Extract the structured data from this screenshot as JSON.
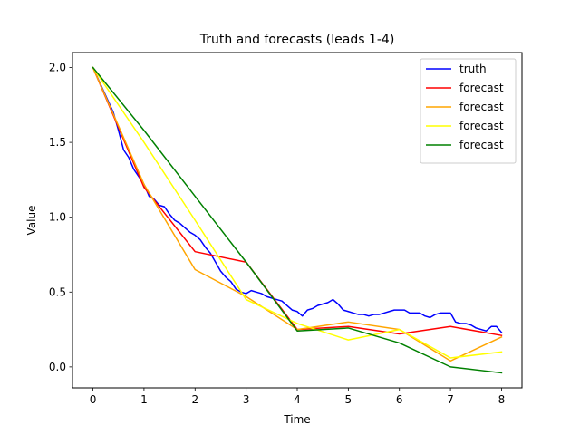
{
  "chart_data": {
    "type": "line",
    "title": "Truth and forecasts (leads 1-4)",
    "xlabel": "Time",
    "ylabel": "Value",
    "xlim": [
      -0.4,
      8.4
    ],
    "ylim": [
      -0.14,
      2.1
    ],
    "xticks": [
      0,
      1,
      2,
      3,
      4,
      5,
      6,
      7,
      8
    ],
    "xtick_labels": [
      "0",
      "1",
      "2",
      "3",
      "4",
      "5",
      "6",
      "7",
      "8"
    ],
    "yticks": [
      0.0,
      0.5,
      1.0,
      1.5,
      2.0
    ],
    "ytick_labels": [
      "0.0",
      "0.5",
      "1.0",
      "1.5",
      "2.0"
    ],
    "grid": false,
    "legend_position": "top-right",
    "series": [
      {
        "name": "truth",
        "color": "#0000ff",
        "x": [
          0,
          0.2,
          0.4,
          0.5,
          0.6,
          0.7,
          0.8,
          0.9,
          1.0,
          1.1,
          1.2,
          1.3,
          1.4,
          1.5,
          1.6,
          1.7,
          1.8,
          1.9,
          2.0,
          2.1,
          2.2,
          2.3,
          2.4,
          2.5,
          2.6,
          2.7,
          2.8,
          2.9,
          3.0,
          3.1,
          3.2,
          3.3,
          3.4,
          3.5,
          3.6,
          3.7,
          3.8,
          3.9,
          4.0,
          4.1,
          4.2,
          4.3,
          4.4,
          4.5,
          4.6,
          4.7,
          4.8,
          4.9,
          5.0,
          5.1,
          5.2,
          5.3,
          5.4,
          5.5,
          5.6,
          5.7,
          5.8,
          5.9,
          6.0,
          6.1,
          6.2,
          6.3,
          6.4,
          6.5,
          6.6,
          6.7,
          6.8,
          6.9,
          7.0,
          7.1,
          7.2,
          7.3,
          7.4,
          7.5,
          7.6,
          7.7,
          7.8,
          7.9,
          8.0
        ],
        "values": [
          2.0,
          1.85,
          1.7,
          1.58,
          1.45,
          1.4,
          1.32,
          1.27,
          1.22,
          1.14,
          1.12,
          1.08,
          1.07,
          1.02,
          0.98,
          0.96,
          0.93,
          0.9,
          0.88,
          0.85,
          0.8,
          0.76,
          0.7,
          0.64,
          0.6,
          0.57,
          0.52,
          0.5,
          0.49,
          0.51,
          0.5,
          0.49,
          0.47,
          0.46,
          0.45,
          0.44,
          0.41,
          0.38,
          0.37,
          0.34,
          0.38,
          0.39,
          0.41,
          0.42,
          0.43,
          0.45,
          0.42,
          0.38,
          0.37,
          0.36,
          0.35,
          0.35,
          0.34,
          0.35,
          0.35,
          0.36,
          0.37,
          0.38,
          0.38,
          0.38,
          0.36,
          0.36,
          0.36,
          0.34,
          0.33,
          0.35,
          0.36,
          0.36,
          0.36,
          0.3,
          0.29,
          0.29,
          0.28,
          0.26,
          0.25,
          0.24,
          0.27,
          0.27,
          0.23
        ]
      },
      {
        "name": "forecast",
        "color": "#ff0000",
        "x": [
          0,
          1,
          2,
          3,
          4,
          5,
          6,
          7,
          8
        ],
        "values": [
          2.0,
          1.2,
          0.77,
          0.7,
          0.25,
          0.27,
          0.22,
          0.27,
          0.21
        ]
      },
      {
        "name": "forecast",
        "color": "#ffa500",
        "x": [
          0,
          1,
          2,
          3,
          4,
          5,
          6,
          7,
          8
        ],
        "values": [
          2.0,
          1.22,
          0.65,
          0.47,
          0.25,
          0.3,
          0.25,
          0.04,
          0.2
        ]
      },
      {
        "name": "forecast",
        "color": "#ffff00",
        "x": [
          0,
          1,
          2,
          3,
          4,
          5,
          6,
          7,
          8
        ],
        "values": [
          2.0,
          1.5,
          0.98,
          0.45,
          0.29,
          0.18,
          0.25,
          0.06,
          0.1
        ]
      },
      {
        "name": "forecast",
        "color": "#008000",
        "x": [
          0,
          1,
          2,
          3,
          4,
          5,
          6,
          7,
          8
        ],
        "values": [
          2.0,
          1.58,
          1.14,
          0.7,
          0.24,
          0.26,
          0.16,
          0.0,
          -0.04
        ]
      }
    ]
  }
}
